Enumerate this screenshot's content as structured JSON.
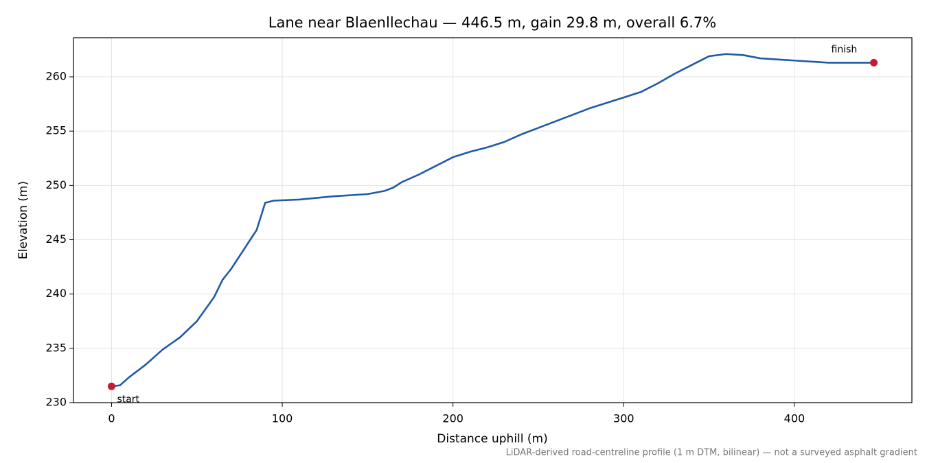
{
  "chart_data": {
    "type": "line",
    "title": "Lane near Blaenllechau — 446.5 m, gain 29.8 m, overall 6.7%",
    "x_label": "Distance uphill (m)",
    "y_label": "Elevation (m)",
    "footnote": "LiDAR-derived road-centreline profile (1 m DTM, bilinear) — not a surveyed asphalt gradient",
    "x": [
      0,
      5,
      10,
      20,
      30,
      40,
      50,
      60,
      65,
      70,
      80,
      85,
      90,
      95,
      110,
      130,
      150,
      160,
      165,
      170,
      180,
      190,
      200,
      210,
      220,
      230,
      240,
      250,
      260,
      270,
      280,
      290,
      300,
      310,
      320,
      330,
      340,
      350,
      360,
      370,
      380,
      390,
      400,
      410,
      420,
      430,
      440,
      446.5
    ],
    "values": [
      231.5,
      231.6,
      232.3,
      233.5,
      234.9,
      236.0,
      237.5,
      239.7,
      241.3,
      242.3,
      244.7,
      245.9,
      248.4,
      248.6,
      248.7,
      249.0,
      249.2,
      249.5,
      249.8,
      250.3,
      251.0,
      251.8,
      252.6,
      253.1,
      253.5,
      254.0,
      254.7,
      255.3,
      255.9,
      256.5,
      257.1,
      257.6,
      258.1,
      258.6,
      259.4,
      260.3,
      261.1,
      261.9,
      262.1,
      262.0,
      261.7,
      261.6,
      261.5,
      261.4,
      261.3,
      261.3,
      261.3,
      261.3
    ],
    "color": "#1f5aa8",
    "points": [
      {
        "label": "start",
        "x": 0,
        "y": 231.5
      },
      {
        "label": "finish",
        "x": 446.5,
        "y": 261.3
      }
    ],
    "point_color": "#c41e33",
    "xlim": [
      -22.3,
      468.8
    ],
    "ylim": [
      230,
      263.6
    ],
    "xticks": [
      0,
      100,
      200,
      300,
      400
    ],
    "yticks": [
      230,
      235,
      240,
      245,
      250,
      255,
      260
    ],
    "grid": true
  }
}
